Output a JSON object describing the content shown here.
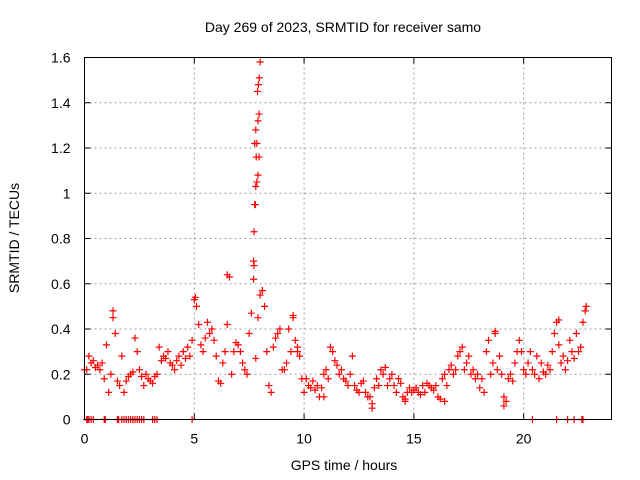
{
  "chart_data": {
    "type": "scatter",
    "title": "Day 269 of 2023, SRMTID for receiver samo",
    "xlabel": "GPS time / hours",
    "ylabel": "SRMTID / TECUs",
    "xlim": [
      0,
      24
    ],
    "ylim": [
      0,
      1.6
    ],
    "xticks": [
      "0",
      "5",
      "10",
      "15",
      "20"
    ],
    "xtick_values": [
      0,
      5,
      10,
      15,
      20
    ],
    "yticks": [
      "0",
      "0.2",
      "0.4",
      "0.6",
      "0.8",
      "1",
      "1.2",
      "1.4",
      "1.6"
    ],
    "ytick_values": [
      0,
      0.2,
      0.4,
      0.6,
      0.8,
      1.0,
      1.2,
      1.4,
      1.6
    ],
    "grid": true,
    "marker": "plus",
    "color": "#ff0000",
    "series_start_hour": 0.0,
    "series_step_hours": 0.1,
    "series_values": [
      0.22,
      0.22,
      0.28,
      0.25,
      0.26,
      0.23,
      0.24,
      0.22,
      0.25,
      0.18,
      0.33,
      0.12,
      0.2,
      0.45,
      0.38,
      0.17,
      0.15,
      0.28,
      0.12,
      0.17,
      0.19,
      0.2,
      0.21,
      0.36,
      0.3,
      0.22,
      0.19,
      0.15,
      0.2,
      0.18,
      0.17,
      0.16,
      0.19,
      0.2,
      0.32,
      0.26,
      0.28,
      0.27,
      0.3,
      0.25,
      0.24,
      0.22,
      0.26,
      0.28,
      0.24,
      0.3,
      0.27,
      0.32,
      0.28,
      0.35,
      0.53,
      0.5,
      0.42,
      0.33,
      0.3,
      0.36,
      0.43,
      0.38,
      0.4,
      0.35,
      0.28,
      0.17,
      0.16,
      0.25,
      0.3,
      0.42,
      0.63,
      0.2,
      0.3,
      0.34,
      0.33,
      0.3,
      0.25,
      0.22,
      0.2,
      0.38,
      0.47,
      0.62,
      0.27,
      0.45,
      0.55,
      0.57,
      0.5,
      0.3,
      0.15,
      0.12,
      0.32,
      0.36,
      0.38,
      0.4,
      0.22,
      0.22,
      0.25,
      0.4,
      0.3,
      0.45,
      0.35,
      0.32,
      0.28,
      0.18,
      0.12,
      0.18,
      0.15,
      0.14,
      0.17,
      0.13,
      0.15,
      0.1,
      0.14,
      0.2,
      0.22,
      0.18,
      0.32,
      0.3,
      0.26,
      0.24,
      0.2,
      0.22,
      0.18,
      0.17,
      0.15,
      0.2,
      0.28,
      0.15,
      0.13,
      0.12,
      0.16,
      0.17,
      0.12,
      0.1,
      0.1,
      0.07,
      0.14,
      0.18,
      0.15,
      0.22,
      0.2,
      0.23,
      0.15,
      0.18,
      0.2,
      0.15,
      0.12,
      0.18,
      0.16,
      0.1,
      0.09,
      0.12,
      0.14,
      0.12,
      0.13,
      0.14,
      0.12,
      0.11,
      0.15,
      0.12,
      0.16,
      0.15,
      0.14,
      0.13,
      0.15,
      0.1,
      0.09,
      0.18,
      0.2,
      0.15,
      0.22,
      0.24,
      0.2,
      0.22,
      0.28,
      0.3,
      0.32,
      0.22,
      0.25,
      0.28,
      0.2,
      0.22,
      0.18,
      0.2,
      0.14,
      0.18,
      0.12,
      0.3,
      0.35,
      0.2,
      0.25,
      0.38,
      0.22,
      0.28,
      0.2,
      0.1,
      0.08,
      0.18,
      0.2,
      0.17,
      0.25,
      0.3,
      0.35,
      0.3,
      0.22,
      0.2,
      0.25,
      0.3,
      0.22,
      0.2,
      0.28,
      0.18,
      0.25,
      0.21,
      0.2,
      0.24,
      0.22,
      0.3,
      0.38,
      0.43,
      0.33,
      0.25,
      0.28,
      0.22,
      0.26,
      0.35,
      0.3,
      0.27,
      0.38,
      0.3,
      0.32,
      0.43,
      0.48
    ],
    "extra_points": [
      [
        7.72,
        0.83
      ],
      [
        7.75,
        0.95
      ],
      [
        7.78,
        0.95
      ],
      [
        7.8,
        1.03
      ],
      [
        7.85,
        1.05
      ],
      [
        7.9,
        1.08
      ],
      [
        7.82,
        1.16
      ],
      [
        7.95,
        1.16
      ],
      [
        7.75,
        1.22
      ],
      [
        7.85,
        1.22
      ],
      [
        7.8,
        1.28
      ],
      [
        7.9,
        1.32
      ],
      [
        7.95,
        1.35
      ],
      [
        7.88,
        1.45
      ],
      [
        7.92,
        1.48
      ],
      [
        7.96,
        1.51
      ],
      [
        8.0,
        1.58
      ],
      [
        7.7,
        0.7
      ],
      [
        7.72,
        0.68
      ],
      [
        6.5,
        0.64
      ],
      [
        5.05,
        0.54
      ],
      [
        8.1,
        0.57
      ],
      [
        1.3,
        0.48
      ],
      [
        9.5,
        0.46
      ],
      [
        22.85,
        0.5
      ],
      [
        21.6,
        0.44
      ],
      [
        19.1,
        0.06
      ],
      [
        13.1,
        0.05
      ],
      [
        18.7,
        0.39
      ],
      [
        9.7,
        0.3
      ],
      [
        10.9,
        0.1
      ],
      [
        14.6,
        0.08
      ],
      [
        16.4,
        0.08
      ]
    ],
    "zero_points": [
      0.1,
      0.15,
      0.2,
      0.3,
      0.4,
      0.9,
      0.95,
      1.5,
      1.55,
      1.7,
      1.8,
      1.9,
      2.0,
      2.1,
      2.2,
      2.3,
      2.4,
      2.5,
      2.6,
      2.7,
      3.1,
      3.2,
      3.3,
      4.9,
      20.4,
      21.5,
      22.0,
      22.3,
      22.65,
      22.7
    ]
  }
}
